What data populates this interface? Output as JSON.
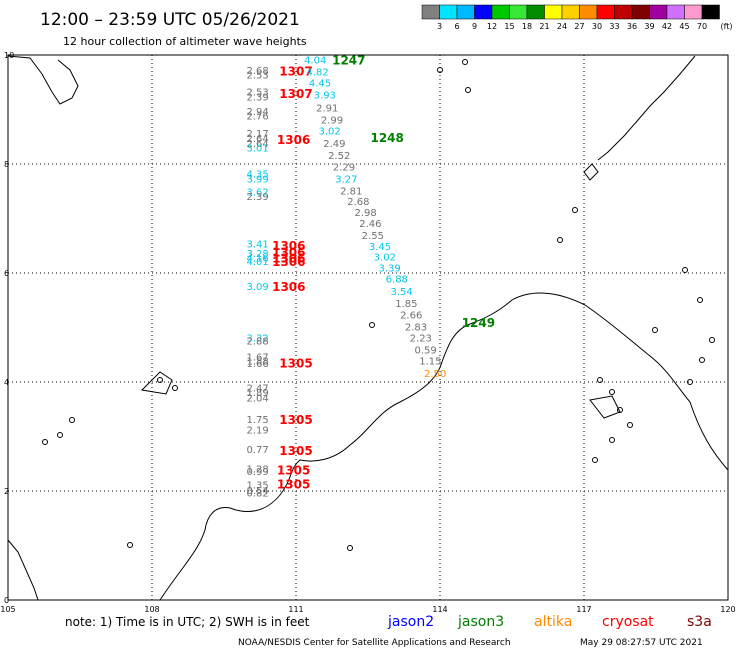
{
  "header": {
    "title": "12:00 – 23:59 UTC 05/26/2021",
    "subtitle": "12 hour collection of altimeter wave heights"
  },
  "colorbar": {
    "ticks": [
      "3",
      "6",
      "9",
      "12",
      "15",
      "18",
      "21",
      "24",
      "27",
      "30",
      "33",
      "36",
      "39",
      "42",
      "45",
      "70"
    ],
    "unit": "(ft)",
    "colors": [
      "#808080",
      "#00e5ff",
      "#00b8ff",
      "#0000ff",
      "#00c800",
      "#38e838",
      "#008c00",
      "#ffff00",
      "#ffd000",
      "#ff8c00",
      "#ff0000",
      "#c00000",
      "#800000",
      "#a000a0",
      "#d070ff",
      "#ff9ad0",
      "#000000"
    ]
  },
  "footer": {
    "note": "note: 1) Time is in UTC; 2) SWH is in feet",
    "credit": "NOAA/NESDIS Center for Satellite Applications and Research",
    "timestamp": "May 29 08:27:57 UTC 2021",
    "satellites": [
      {
        "name": "jason2",
        "color": "#0000ff"
      },
      {
        "name": "jason3",
        "color": "#008000"
      },
      {
        "name": "altika",
        "color": "#ff8c00"
      },
      {
        "name": "cryosat",
        "color": "#ff0000"
      },
      {
        "name": "s3a",
        "color": "#800000"
      }
    ]
  },
  "chart_data": {
    "type": "scatter",
    "xlim": [
      105,
      120
    ],
    "ylim": [
      0,
      10
    ],
    "xticks": [
      105,
      108,
      111,
      114,
      117,
      120
    ],
    "yticks": [
      0,
      2,
      4,
      6,
      8,
      10
    ],
    "grid": true,
    "value_unit": "ft",
    "color_rule": "gray for SWH < 3 ft, cyan for 3-6 ft, orange for altika track",
    "tracks": [
      {
        "satellite": "cryosat",
        "color": "#ff0000",
        "time_labels": [
          {
            "text": "1307",
            "lon": 111.0,
            "lat": 9.7
          },
          {
            "text": "1307",
            "lon": 111.0,
            "lat": 9.28
          },
          {
            "text": "1306",
            "lon": 110.95,
            "lat": 8.44
          },
          {
            "text": "1306",
            "lon": 110.85,
            "lat": 6.5
          },
          {
            "text": "1306",
            "lon": 110.85,
            "lat": 6.38
          },
          {
            "text": "1306",
            "lon": 110.85,
            "lat": 6.27
          },
          {
            "text": "1306",
            "lon": 110.85,
            "lat": 6.2
          },
          {
            "text": "1306",
            "lon": 110.85,
            "lat": 5.74
          },
          {
            "text": "1305",
            "lon": 111.0,
            "lat": 4.34
          },
          {
            "text": "1305",
            "lon": 111.0,
            "lat": 3.3
          },
          {
            "text": "1305",
            "lon": 111.0,
            "lat": 2.73
          },
          {
            "text": "1305",
            "lon": 110.95,
            "lat": 2.38
          },
          {
            "text": "1305",
            "lon": 110.95,
            "lat": 2.12
          }
        ],
        "points": [
          {
            "lat": 9.71,
            "swh": 2.68
          },
          {
            "lat": 9.62,
            "swh": 2.53
          },
          {
            "lat": 9.31,
            "swh": 2.53
          },
          {
            "lat": 9.22,
            "swh": 2.39
          },
          {
            "lat": 8.95,
            "swh": 2.94
          },
          {
            "lat": 8.87,
            "swh": 2.76
          },
          {
            "lat": 8.55,
            "swh": 2.17
          },
          {
            "lat": 8.46,
            "swh": 2.64
          },
          {
            "lat": 8.37,
            "swh": 2.64
          },
          {
            "lat": 8.28,
            "swh": 3.01
          },
          {
            "lat": 7.81,
            "swh": 4.35
          },
          {
            "lat": 7.72,
            "swh": 3.99
          },
          {
            "lat": 7.48,
            "swh": 3.62
          },
          {
            "lat": 7.39,
            "swh": 2.39
          },
          {
            "lat": 6.52,
            "swh": 3.41
          },
          {
            "lat": 6.35,
            "swh": 3.28
          },
          {
            "lat": 6.27,
            "swh": 4.16
          },
          {
            "lat": 6.2,
            "swh": 4.01
          },
          {
            "lat": 5.74,
            "swh": 3.09
          },
          {
            "lat": 4.8,
            "swh": 3.32
          },
          {
            "lat": 4.74,
            "swh": 2.88
          },
          {
            "lat": 4.45,
            "swh": 1.67
          },
          {
            "lat": 4.38,
            "swh": 1.88
          },
          {
            "lat": 4.33,
            "swh": 1.66
          },
          {
            "lat": 3.88,
            "swh": 2.47
          },
          {
            "lat": 3.8,
            "swh": 1.89
          },
          {
            "lat": 3.7,
            "swh": 2.04
          },
          {
            "lat": 3.3,
            "swh": 1.75
          },
          {
            "lat": 3.11,
            "swh": 2.19
          },
          {
            "lat": 2.75,
            "swh": 0.77
          },
          {
            "lat": 2.39,
            "swh": 1.28
          },
          {
            "lat": 2.35,
            "swh": 0.99
          },
          {
            "lat": 2.1,
            "swh": 1.35
          },
          {
            "lat": 2.0,
            "swh": 0.54
          },
          {
            "lat": 1.95,
            "swh": 0.82
          }
        ]
      },
      {
        "satellite": "jason3",
        "color": "#008000",
        "time_labels": [
          {
            "text": "1247",
            "lon": 112.1,
            "lat": 9.9
          },
          {
            "text": "1248",
            "lon": 112.9,
            "lat": 8.48
          },
          {
            "text": "1249",
            "lon": 114.8,
            "lat": 5.08
          }
        ],
        "points": [
          {
            "lon": 111.4,
            "lat": 9.9,
            "swh": 4.04
          },
          {
            "lon": 111.45,
            "lat": 9.68,
            "swh": 4.82
          },
          {
            "lon": 111.5,
            "lat": 9.48,
            "swh": 4.45
          },
          {
            "lon": 111.6,
            "lat": 9.26,
            "swh": 3.93
          },
          {
            "lon": 111.65,
            "lat": 9.02,
            "swh": 2.91
          },
          {
            "lon": 111.75,
            "lat": 8.8,
            "swh": 2.99
          },
          {
            "lon": 111.7,
            "lat": 8.6,
            "swh": 3.02
          },
          {
            "lon": 111.8,
            "lat": 8.37,
            "swh": 2.49
          },
          {
            "lon": 111.9,
            "lat": 8.15,
            "swh": 2.52
          },
          {
            "lon": 112.0,
            "lat": 7.94,
            "swh": 2.29
          },
          {
            "lon": 112.05,
            "lat": 7.72,
            "swh": 3.27
          },
          {
            "lon": 112.15,
            "lat": 7.5,
            "swh": 2.81
          },
          {
            "lon": 112.3,
            "lat": 7.3,
            "swh": 2.68
          },
          {
            "lon": 112.45,
            "lat": 7.1,
            "swh": 2.98
          },
          {
            "lon": 112.55,
            "lat": 6.9,
            "swh": 2.46
          },
          {
            "lon": 112.6,
            "lat": 6.68,
            "swh": 2.55
          },
          {
            "lon": 112.75,
            "lat": 6.48,
            "swh": 3.45
          },
          {
            "lon": 112.85,
            "lat": 6.28,
            "swh": 3.02
          },
          {
            "lon": 112.95,
            "lat": 6.08,
            "swh": 3.39
          },
          {
            "lon": 113.1,
            "lat": 5.88,
            "swh": 6.88
          },
          {
            "lon": 113.2,
            "lat": 5.65,
            "swh": 3.54
          },
          {
            "lon": 113.3,
            "lat": 5.43,
            "swh": 1.85
          },
          {
            "lon": 113.4,
            "lat": 5.22,
            "swh": 2.66
          },
          {
            "lon": 113.5,
            "lat": 5.0,
            "swh": 2.83
          },
          {
            "lon": 113.6,
            "lat": 4.8,
            "swh": 2.23
          },
          {
            "lon": 113.7,
            "lat": 4.58,
            "swh": 0.59
          },
          {
            "lon": 113.8,
            "lat": 4.38,
            "swh": 1.15
          }
        ]
      },
      {
        "satellite": "altika",
        "color": "#ff8c00",
        "time_labels": [],
        "points": [
          {
            "lon": 113.9,
            "lat": 4.15,
            "swh": 2.5
          }
        ]
      }
    ]
  }
}
